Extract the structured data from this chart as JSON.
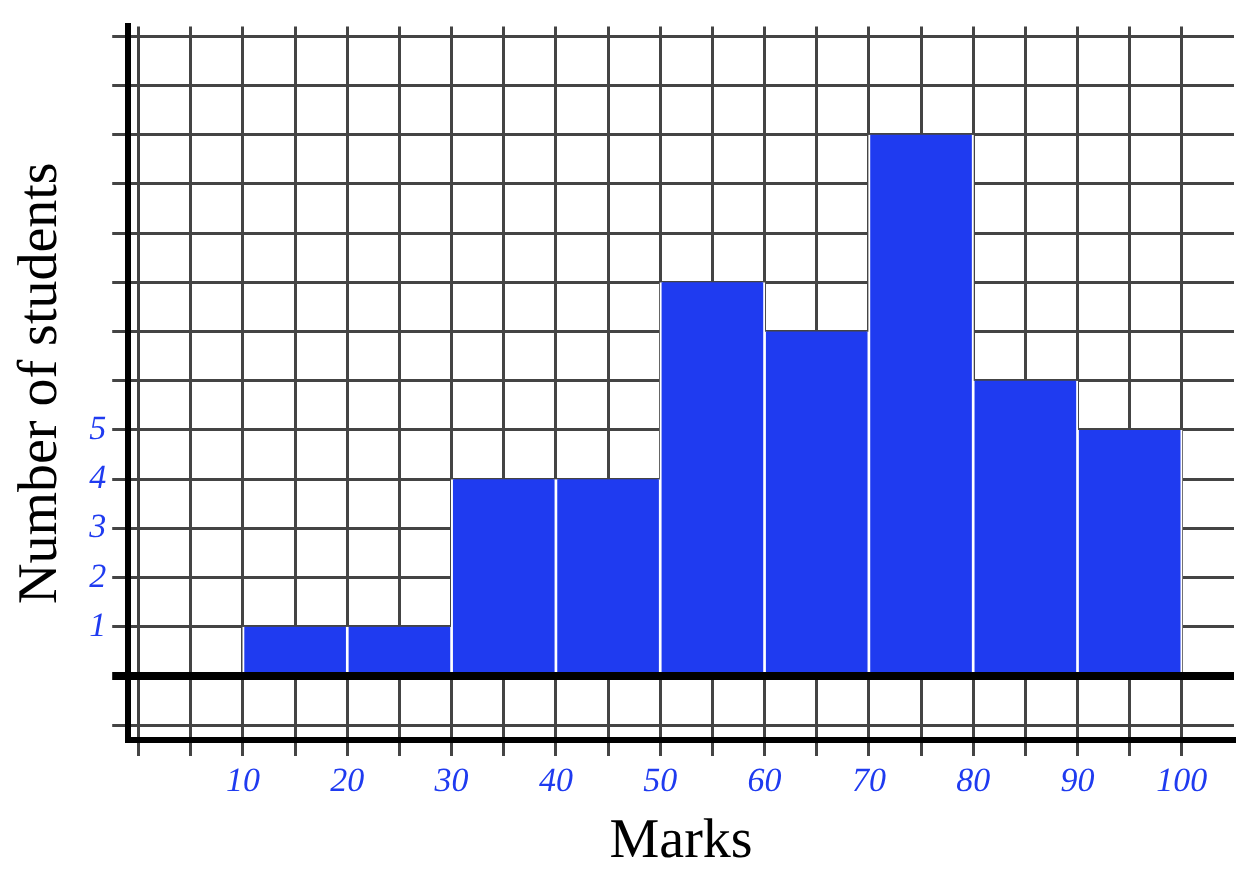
{
  "chart_data": {
    "type": "histogram",
    "xlabel": "Marks",
    "ylabel": "Number of students",
    "bins": [
      0,
      10,
      20,
      30,
      40,
      50,
      60,
      70,
      80,
      90,
      100
    ],
    "values": [
      0,
      1,
      1,
      4,
      4,
      8,
      7,
      11,
      6,
      5
    ],
    "color": "#1f3bf0",
    "xlim": [
      -1,
      105
    ],
    "ylim": [
      -1.3,
      13.2
    ],
    "xticks": [
      {
        "value": 0,
        "label": null
      },
      {
        "value": 5,
        "label": null
      },
      10,
      {
        "value": 15,
        "label": null
      },
      20,
      {
        "value": 25,
        "label": null
      },
      30,
      {
        "value": 35,
        "label": null
      },
      40,
      {
        "value": 45,
        "label": null
      },
      50,
      {
        "value": 55,
        "label": null
      },
      60,
      {
        "value": 65,
        "label": null
      },
      70,
      {
        "value": 75,
        "label": null
      },
      80,
      {
        "value": 85,
        "label": null
      },
      90,
      {
        "value": 95,
        "label": null
      },
      100
    ],
    "yticks": [
      {
        "value": -1,
        "label": null
      },
      {
        "value": 0,
        "label": null
      },
      1,
      2,
      3,
      4,
      5,
      {
        "value": 6,
        "label": null
      },
      {
        "value": 7,
        "label": null
      },
      {
        "value": 8,
        "label": null
      },
      {
        "value": 9,
        "label": null
      },
      {
        "value": 10,
        "label": null
      },
      {
        "value": 11,
        "label": null
      },
      {
        "value": 12,
        "label": null
      },
      {
        "value": 13,
        "label": null
      }
    ],
    "grid": true
  }
}
